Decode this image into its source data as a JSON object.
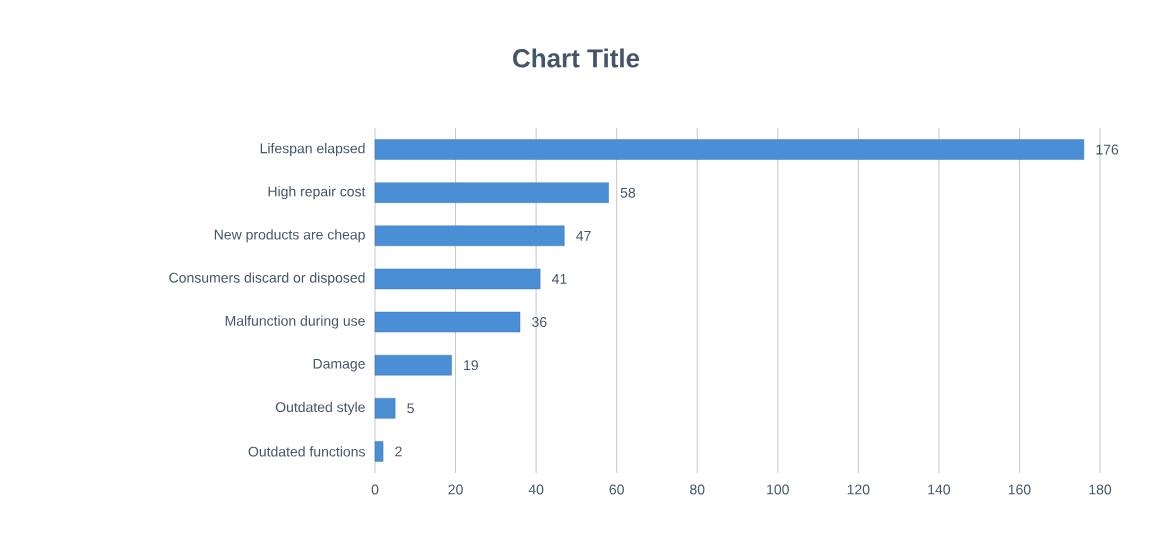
{
  "chart_data": {
    "type": "bar",
    "orientation": "horizontal",
    "title": "Chart Title",
    "categories": [
      "Lifespan elapsed",
      "High repair cost",
      "New products are cheap",
      "Consumers discard or disposed",
      "Malfunction during use",
      "Damage",
      "Outdated style",
      "Outdated functions"
    ],
    "values": [
      176,
      58,
      47,
      41,
      36,
      19,
      5,
      2
    ],
    "color": "#4a8fd6",
    "xlim": [
      0,
      180
    ],
    "xticks": [
      0,
      20,
      40,
      60,
      80,
      100,
      120,
      140,
      160,
      180
    ],
    "grid": "x",
    "data_labels": true
  }
}
